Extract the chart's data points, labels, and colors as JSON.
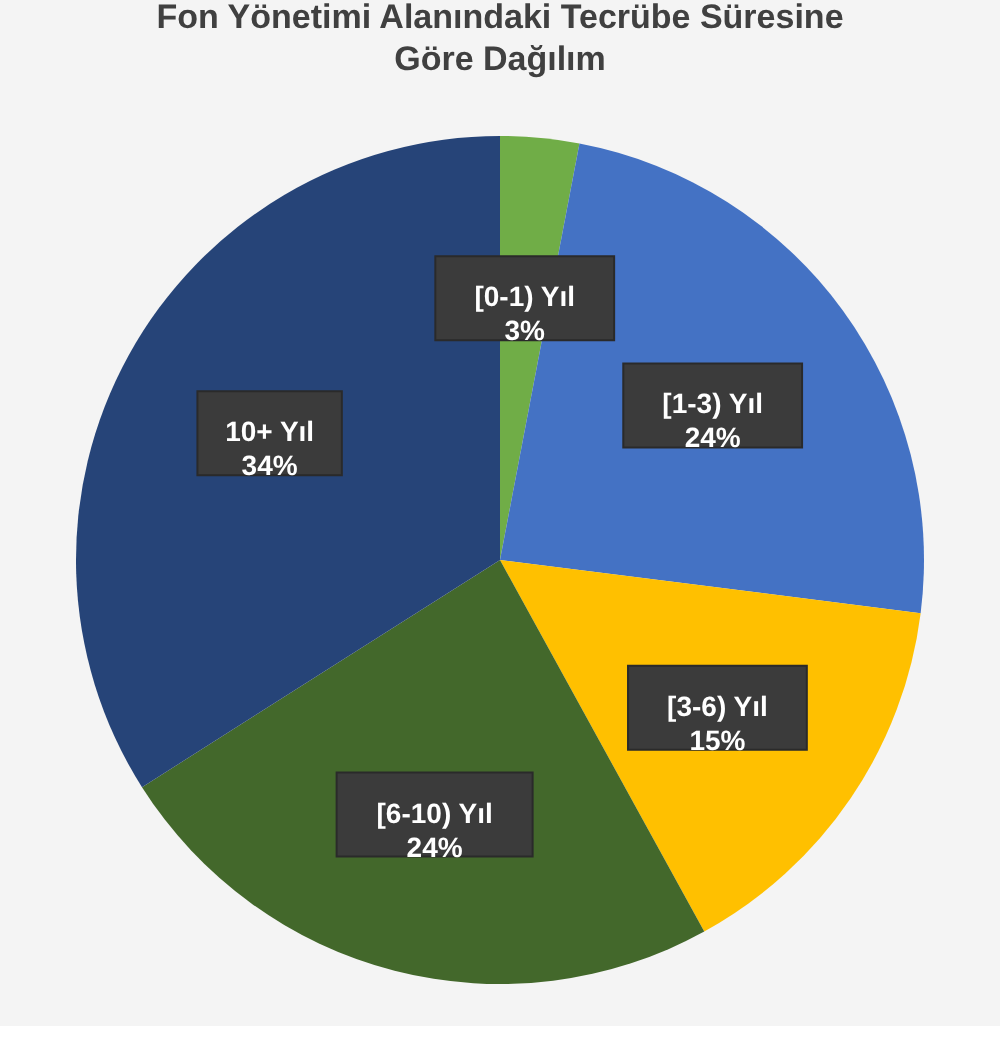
{
  "chart_data": {
    "type": "pie",
    "title": "Fon Yönetimi Alanındaki Tecrübe Süresine\nGöre Dağılım",
    "categories": [
      "[0-1) Yıl",
      "[1-3) Yıl",
      "[3-6) Yıl",
      "[6-10) Yıl",
      "10+ Yıl"
    ],
    "values": [
      3,
      24,
      15,
      24,
      34
    ],
    "value_labels": [
      "3%",
      "24%",
      "15%",
      "24%",
      "34%"
    ],
    "colors": [
      "#70ad47",
      "#4472c4",
      "#ffc000",
      "#43682b",
      "#264478"
    ]
  }
}
